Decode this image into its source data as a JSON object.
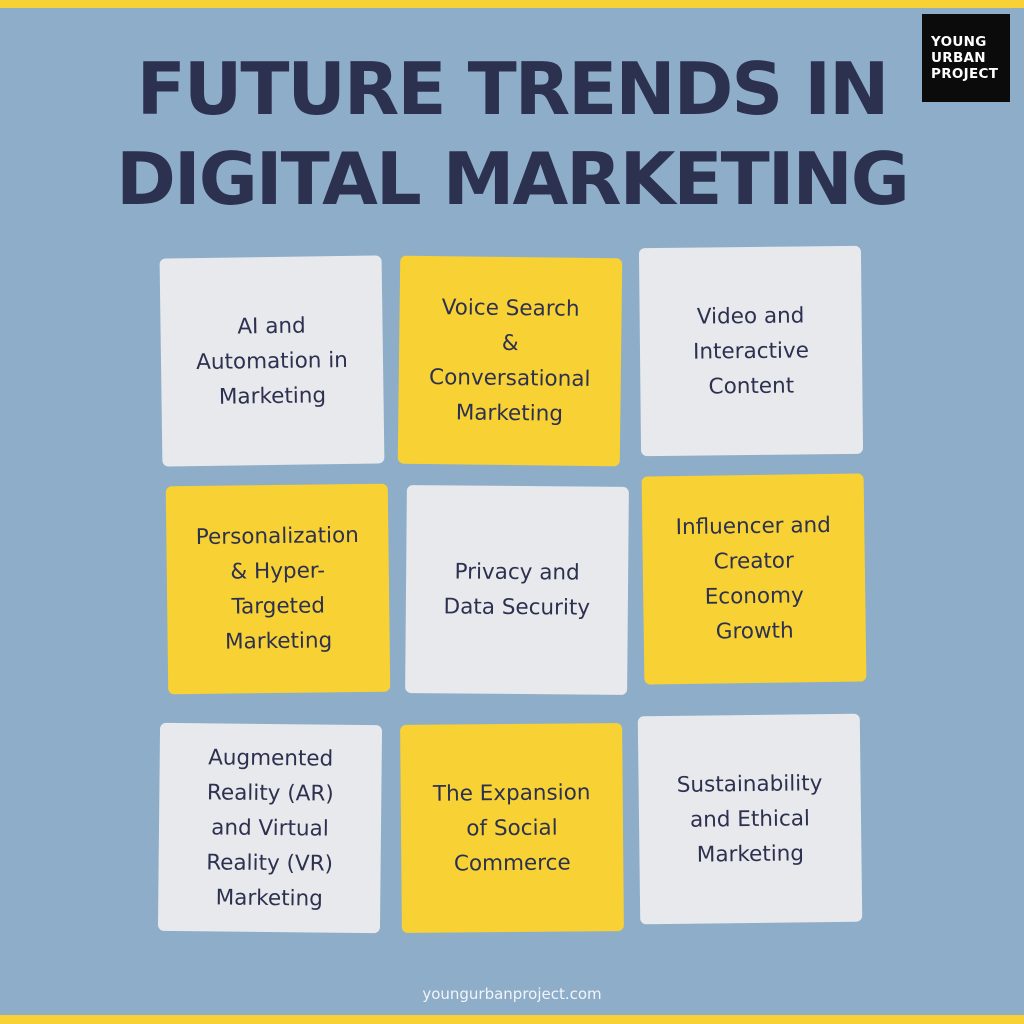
{
  "logo": {
    "line1": "YOUNG",
    "line2": "URBAN",
    "line3": "PROJECT"
  },
  "title": {
    "line1": "FUTURE TRENDS IN",
    "line2": "DIGITAL MARKETING"
  },
  "cards": [
    {
      "label": "AI and\nAutomation in\nMarketing",
      "color": "#e8e9ec"
    },
    {
      "label": "Voice Search\n&\nConversational\nMarketing",
      "color": "#f8d234"
    },
    {
      "label": "Video and\nInteractive\nContent",
      "color": "#e8e9ec"
    },
    {
      "label": "Personalization\n& Hyper-\nTargeted\nMarketing",
      "color": "#f8d234"
    },
    {
      "label": "Privacy and\nData Security",
      "color": "#e8e9ec"
    },
    {
      "label": "Influencer and\nCreator\nEconomy\nGrowth",
      "color": "#f8d234"
    },
    {
      "label": "Augmented\nReality (AR)\nand Virtual\nReality (VR)\nMarketing",
      "color": "#e8e9ec"
    },
    {
      "label": "The Expansion\nof Social\nCommerce",
      "color": "#f8d234"
    },
    {
      "label": "Sustainability\nand Ethical\nMarketing",
      "color": "#e8e9ec"
    }
  ],
  "footer": {
    "website": "youngurbanproject.com"
  },
  "colors": {
    "background": "#8eadc9",
    "title": "#2d3150",
    "accent_yellow": "#f8d234",
    "card_light": "#e8e9ec"
  }
}
